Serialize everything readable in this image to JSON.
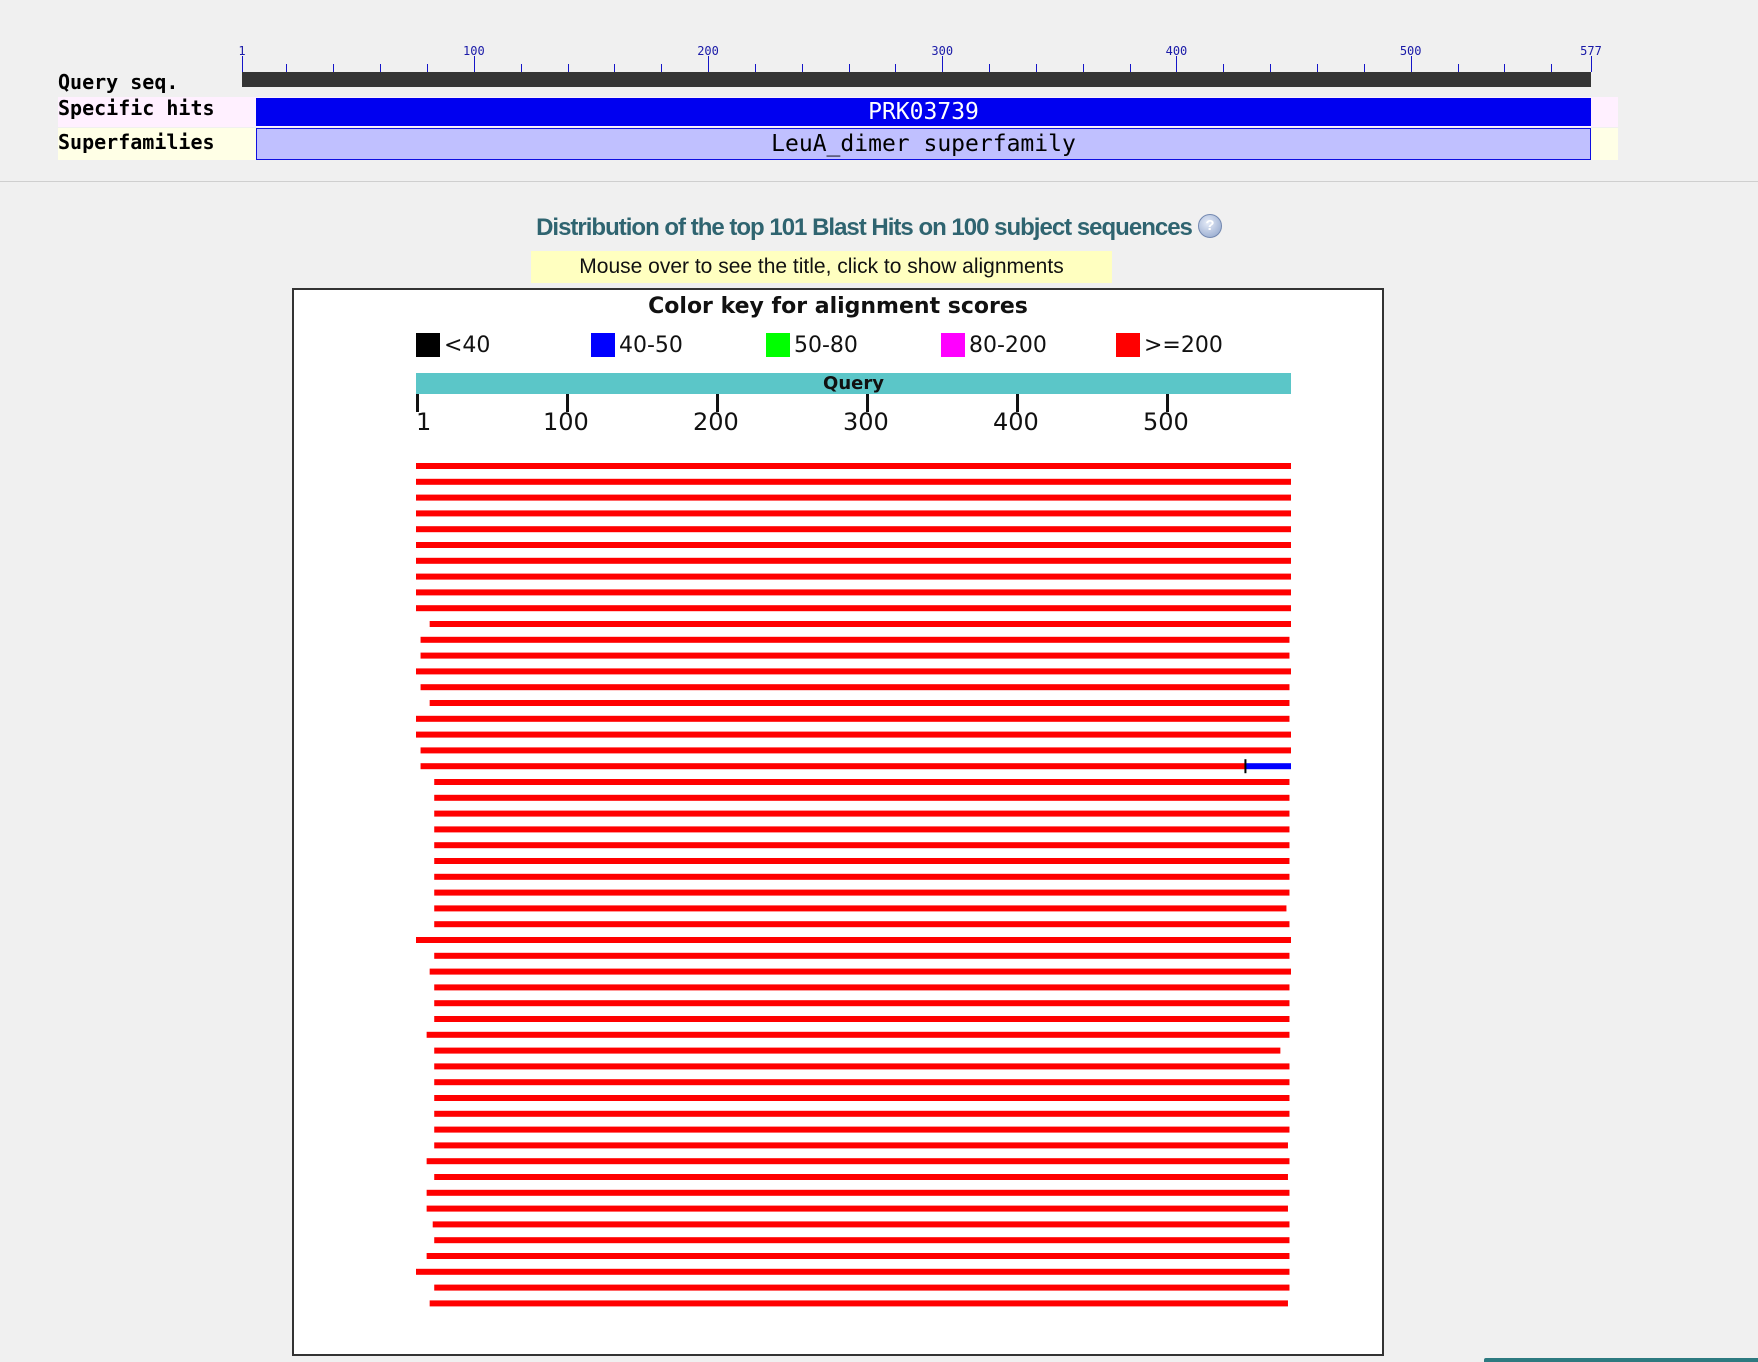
{
  "conserved_domains": {
    "row_labels": [
      "Query seq.",
      "Specific hits",
      "Superfamilies"
    ],
    "ruler": {
      "length": 577,
      "labels": [
        1,
        100,
        200,
        300,
        400,
        500,
        577
      ],
      "minor_step": 20
    },
    "specific_hit": {
      "label": "PRK03739",
      "start": 8,
      "end": 577,
      "color": "#0000f0"
    },
    "superfamily": {
      "label": "LeuA_dimer superfamily",
      "start": 8,
      "end": 577,
      "color": "#c0c0ff"
    }
  },
  "distribution": {
    "title": "Distribution of the top 101 Blast Hits on 100 subject sequences",
    "help_icon": "help-icon",
    "note": "Mouse over to see the title, click to show alignments"
  },
  "color_key": {
    "title": "Color key for alignment scores",
    "items": [
      {
        "label": "<40",
        "color": "#000000"
      },
      {
        "label": "40-50",
        "color": "#0000ff"
      },
      {
        "label": "50-80",
        "color": "#00ff00"
      },
      {
        "label": "80-200",
        "color": "#ff00ff"
      },
      {
        "label": ">=200",
        "color": "#ff0000"
      }
    ]
  },
  "hits_graphic": {
    "query_label": "Query",
    "query_length": 577,
    "tick_labels": [
      1,
      100,
      200,
      300,
      400,
      500
    ],
    "bar_color": "#ff0000",
    "hits": [
      {
        "start": 1,
        "end": 577
      },
      {
        "start": 1,
        "end": 577
      },
      {
        "start": 1,
        "end": 577
      },
      {
        "start": 1,
        "end": 577
      },
      {
        "start": 1,
        "end": 577
      },
      {
        "start": 1,
        "end": 577
      },
      {
        "start": 1,
        "end": 577
      },
      {
        "start": 1,
        "end": 577
      },
      {
        "start": 1,
        "end": 577
      },
      {
        "start": 1,
        "end": 577
      },
      {
        "start": 10,
        "end": 577
      },
      {
        "start": 4,
        "end": 576
      },
      {
        "start": 4,
        "end": 576
      },
      {
        "start": 1,
        "end": 577
      },
      {
        "start": 4,
        "end": 576
      },
      {
        "start": 10,
        "end": 576
      },
      {
        "start": 1,
        "end": 576
      },
      {
        "start": 1,
        "end": 577
      },
      {
        "start": 4,
        "end": 577
      },
      {
        "start": 4,
        "end": 547,
        "extra": {
          "start": 547,
          "end": 577,
          "color": "#0000ff"
        }
      },
      {
        "start": 13,
        "end": 576
      },
      {
        "start": 13,
        "end": 576
      },
      {
        "start": 13,
        "end": 576
      },
      {
        "start": 13,
        "end": 576
      },
      {
        "start": 13,
        "end": 576
      },
      {
        "start": 13,
        "end": 576
      },
      {
        "start": 13,
        "end": 576
      },
      {
        "start": 13,
        "end": 576
      },
      {
        "start": 13,
        "end": 574
      },
      {
        "start": 13,
        "end": 576
      },
      {
        "start": 1,
        "end": 577
      },
      {
        "start": 13,
        "end": 576
      },
      {
        "start": 10,
        "end": 577
      },
      {
        "start": 13,
        "end": 576
      },
      {
        "start": 13,
        "end": 576
      },
      {
        "start": 13,
        "end": 576
      },
      {
        "start": 8,
        "end": 576
      },
      {
        "start": 13,
        "end": 570
      },
      {
        "start": 13,
        "end": 576
      },
      {
        "start": 13,
        "end": 576
      },
      {
        "start": 13,
        "end": 576
      },
      {
        "start": 13,
        "end": 576
      },
      {
        "start": 13,
        "end": 576
      },
      {
        "start": 13,
        "end": 575
      },
      {
        "start": 8,
        "end": 576
      },
      {
        "start": 13,
        "end": 575
      },
      {
        "start": 8,
        "end": 576
      },
      {
        "start": 8,
        "end": 575
      },
      {
        "start": 12,
        "end": 576
      },
      {
        "start": 13,
        "end": 576
      },
      {
        "start": 8,
        "end": 576
      },
      {
        "start": 1,
        "end": 576
      },
      {
        "start": 13,
        "end": 576
      },
      {
        "start": 10,
        "end": 575
      }
    ]
  }
}
